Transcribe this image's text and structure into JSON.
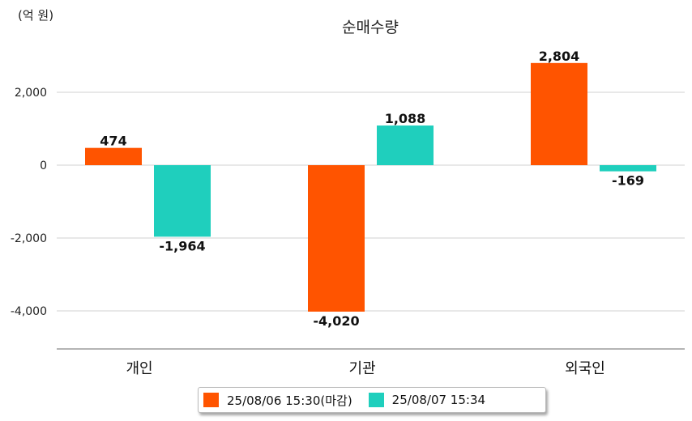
{
  "chart_data": {
    "type": "bar",
    "title": "순매수량",
    "unit_label": "(억 원)",
    "categories": [
      "개인",
      "기관",
      "외국인"
    ],
    "series": [
      {
        "name": "25/08/06 15:30(마감)",
        "color": "#ff5400",
        "values": [
          474,
          -4020,
          2804
        ]
      },
      {
        "name": "25/08/07 15:34",
        "color": "#1fcfbd",
        "values": [
          -1964,
          1088,
          -169
        ]
      }
    ],
    "value_labels": [
      [
        "474",
        "-4,020",
        "2,804"
      ],
      [
        "-1,964",
        "1,088",
        "-169"
      ]
    ],
    "yticks": [
      2000,
      0,
      -2000,
      -4000
    ],
    "ytick_labels": [
      "2,000",
      "0",
      "-2,000",
      "-4,000"
    ],
    "ylim": [
      -5000,
      3500
    ],
    "grid": true,
    "legend_position": "bottom"
  }
}
